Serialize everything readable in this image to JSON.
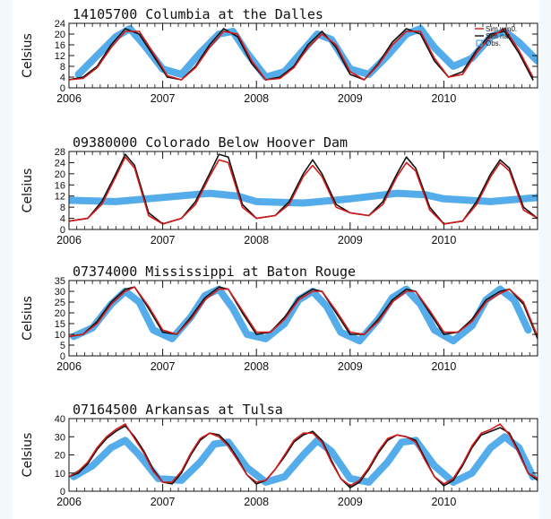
{
  "chart_data": [
    {
      "type": "line",
      "title": "14105700 Columbia at the Dalles",
      "ylabel": "Celsius",
      "xlim": [
        2006,
        2011
      ],
      "x_ticks": [
        "2006",
        "2007",
        "2008",
        "2009",
        "2010"
      ],
      "ylim": [
        0,
        24
      ],
      "y_ticks": [
        0,
        4,
        8,
        12,
        16,
        20,
        24
      ],
      "legend": {
        "placement": "top-right",
        "entries": [
          "Sim wm0.",
          "Sim nat.",
          "Obs."
        ]
      },
      "series": [
        {
          "name": "Obs.",
          "color": "#4ba9e9",
          "style": "thick-marker",
          "x": [
            2006.1,
            2006.3,
            2006.5,
            2006.65,
            2006.8,
            2007.0,
            2007.2,
            2007.4,
            2007.6,
            2007.75,
            2007.9,
            2008.1,
            2008.3,
            2008.5,
            2008.65,
            2008.8,
            2009.0,
            2009.2,
            2009.4,
            2009.6,
            2009.75,
            2009.9,
            2010.1,
            2010.3,
            2010.5,
            2010.65,
            2010.8,
            2011.0
          ],
          "y": [
            5,
            12,
            19,
            22,
            16,
            7,
            5,
            13,
            20,
            21,
            13,
            4,
            6,
            14,
            20,
            18,
            7,
            5,
            12,
            20,
            22,
            15,
            8,
            11,
            19,
            21,
            17,
            10
          ]
        },
        {
          "name": "Sim nat.",
          "color": "#111111",
          "style": "line",
          "x": [
            2006.0,
            2006.15,
            2006.3,
            2006.45,
            2006.6,
            2006.75,
            2006.9,
            2007.05,
            2007.2,
            2007.35,
            2007.5,
            2007.65,
            2007.8,
            2007.95,
            2008.1,
            2008.25,
            2008.4,
            2008.55,
            2008.7,
            2008.85,
            2009.0,
            2009.15,
            2009.3,
            2009.45,
            2009.6,
            2009.75,
            2009.9,
            2010.05,
            2010.2,
            2010.35,
            2010.5,
            2010.65,
            2010.8,
            2010.95
          ],
          "y": [
            3,
            4,
            8,
            16,
            22,
            20,
            12,
            4,
            3,
            8,
            16,
            22,
            19,
            9,
            3,
            4,
            8,
            16,
            21,
            15,
            5,
            3,
            9,
            17,
            22,
            20,
            10,
            4,
            6,
            14,
            20,
            21,
            13,
            3
          ]
        },
        {
          "name": "Sim wm0.",
          "color": "#d11a1a",
          "style": "line",
          "x": [
            2006.0,
            2006.15,
            2006.3,
            2006.45,
            2006.6,
            2006.75,
            2006.9,
            2007.05,
            2007.2,
            2007.35,
            2007.5,
            2007.65,
            2007.8,
            2007.95,
            2008.1,
            2008.25,
            2008.4,
            2008.55,
            2008.7,
            2008.85,
            2009.0,
            2009.15,
            2009.3,
            2009.45,
            2009.6,
            2009.75,
            2009.9,
            2010.05,
            2010.2,
            2010.35,
            2010.5,
            2010.65,
            2010.8,
            2010.95
          ],
          "y": [
            3,
            3.5,
            7.5,
            15,
            21,
            21,
            13,
            4.5,
            3,
            7.5,
            15,
            21,
            20,
            10,
            3,
            3.5,
            7.5,
            15,
            20,
            16,
            6,
            3,
            8.5,
            16,
            21,
            21,
            11,
            4,
            5,
            13,
            19,
            22,
            14,
            4
          ]
        }
      ]
    },
    {
      "type": "line",
      "title": "09380000 Colorado Below Hoover Dam",
      "ylabel": "Celsius",
      "xlim": [
        2006,
        2011
      ],
      "x_ticks": [
        "2006",
        "2007",
        "2008",
        "2009",
        "2010"
      ],
      "ylim": [
        0,
        28
      ],
      "y_ticks": [
        0,
        4,
        8,
        12,
        16,
        20,
        24,
        28
      ],
      "series": [
        {
          "name": "Obs.",
          "color": "#4ba9e9",
          "style": "thick-marker",
          "x": [
            2006.0,
            2006.5,
            2007.0,
            2007.5,
            2007.8,
            2008.0,
            2008.5,
            2009.0,
            2009.5,
            2009.8,
            2010.0,
            2010.5,
            2011.0
          ],
          "y": [
            10.5,
            10,
            11.5,
            13,
            12,
            10,
            9.5,
            11,
            13,
            12.5,
            11,
            10,
            11.5
          ]
        },
        {
          "name": "Sim nat.",
          "color": "#111111",
          "style": "line",
          "x": [
            2006.0,
            2006.2,
            2006.35,
            2006.5,
            2006.6,
            2006.7,
            2006.85,
            2007.0,
            2007.2,
            2007.35,
            2007.5,
            2007.6,
            2007.7,
            2007.85,
            2008.0,
            2008.2,
            2008.35,
            2008.5,
            2008.6,
            2008.7,
            2008.85,
            2009.0,
            2009.2,
            2009.35,
            2009.5,
            2009.6,
            2009.7,
            2009.85,
            2010.0,
            2010.2,
            2010.35,
            2010.5,
            2010.6,
            2010.7,
            2010.85,
            2011.0
          ],
          "y": [
            3,
            4,
            10,
            20,
            27,
            23,
            6,
            2,
            4,
            10,
            20,
            27,
            26,
            9,
            4,
            5,
            10,
            20,
            25,
            20,
            9,
            6,
            5,
            10,
            20,
            26,
            22,
            8,
            2,
            3,
            10,
            20,
            25,
            22,
            8,
            4
          ]
        },
        {
          "name": "Sim wm0.",
          "color": "#d11a1a",
          "style": "line",
          "x": [
            2006.0,
            2006.2,
            2006.35,
            2006.5,
            2006.6,
            2006.7,
            2006.85,
            2007.0,
            2007.2,
            2007.35,
            2007.5,
            2007.6,
            2007.7,
            2007.85,
            2008.0,
            2008.2,
            2008.35,
            2008.5,
            2008.6,
            2008.7,
            2008.85,
            2009.0,
            2009.2,
            2009.35,
            2009.5,
            2009.6,
            2009.7,
            2009.85,
            2010.0,
            2010.2,
            2010.35,
            2010.5,
            2010.6,
            2010.7,
            2010.85,
            2011.0
          ],
          "y": [
            3,
            4,
            9,
            19,
            26,
            22,
            5,
            2,
            4,
            9,
            19,
            25,
            24,
            8,
            4,
            5,
            9,
            19,
            23,
            19,
            8,
            6,
            5,
            9,
            19,
            24,
            21,
            7,
            2,
            3,
            9,
            19,
            24,
            21,
            7,
            4
          ]
        }
      ]
    },
    {
      "type": "line",
      "title": "07374000 Mississippi at Baton Rouge",
      "ylabel": "Celsius",
      "xlim": [
        2006,
        2011
      ],
      "x_ticks": [
        "2006",
        "2007",
        "2008",
        "2009",
        "2010"
      ],
      "ylim": [
        0,
        35
      ],
      "y_ticks": [
        0,
        5,
        10,
        15,
        20,
        25,
        30,
        35
      ],
      "series": [
        {
          "name": "Obs.",
          "color": "#4ba9e9",
          "style": "thick-marker",
          "x": [
            2006.05,
            2006.25,
            2006.45,
            2006.6,
            2006.75,
            2006.9,
            2007.1,
            2007.3,
            2007.45,
            2007.6,
            2007.75,
            2007.9,
            2008.1,
            2008.3,
            2008.45,
            2008.6,
            2008.75,
            2008.9,
            2009.1,
            2009.3,
            2009.45,
            2009.6,
            2009.75,
            2009.9,
            2010.1,
            2010.3,
            2010.45,
            2010.6,
            2010.75,
            2010.9
          ],
          "y": [
            9,
            13,
            24,
            30,
            25,
            12,
            8,
            18,
            28,
            31,
            22,
            10,
            8,
            15,
            26,
            30,
            23,
            11,
            7,
            17,
            27,
            31,
            24,
            12,
            7,
            14,
            26,
            31,
            26,
            12
          ]
        },
        {
          "name": "Sim nat.",
          "color": "#111111",
          "style": "line",
          "x": [
            2006.0,
            2006.15,
            2006.3,
            2006.45,
            2006.6,
            2006.7,
            2006.85,
            2007.0,
            2007.15,
            2007.3,
            2007.45,
            2007.6,
            2007.7,
            2007.85,
            2008.0,
            2008.15,
            2008.3,
            2008.45,
            2008.6,
            2008.7,
            2008.85,
            2009.0,
            2009.15,
            2009.3,
            2009.45,
            2009.6,
            2009.7,
            2009.85,
            2010.0,
            2010.15,
            2010.3,
            2010.45,
            2010.6,
            2010.7,
            2010.85,
            2011.0
          ],
          "y": [
            9,
            10,
            16,
            25,
            31,
            32,
            22,
            11,
            10,
            18,
            27,
            32,
            31,
            20,
            10,
            11,
            18,
            27,
            31,
            30,
            20,
            10,
            10,
            17,
            26,
            31,
            30,
            20,
            10,
            11,
            17,
            26,
            30,
            31,
            24,
            8
          ]
        },
        {
          "name": "Sim wm0.",
          "color": "#d11a1a",
          "style": "line",
          "x": [
            2006.0,
            2006.15,
            2006.3,
            2006.45,
            2006.6,
            2006.7,
            2006.85,
            2007.0,
            2007.15,
            2007.3,
            2007.45,
            2007.6,
            2007.7,
            2007.85,
            2008.0,
            2008.15,
            2008.3,
            2008.45,
            2008.6,
            2008.7,
            2008.85,
            2009.0,
            2009.15,
            2009.3,
            2009.45,
            2009.6,
            2009.7,
            2009.85,
            2010.0,
            2010.15,
            2010.3,
            2010.45,
            2010.6,
            2010.7,
            2010.85,
            2011.0
          ],
          "y": [
            9,
            10,
            15,
            24,
            30,
            32,
            23,
            12,
            10,
            17,
            26,
            31,
            31,
            21,
            11,
            11,
            17,
            26,
            30,
            30,
            21,
            11,
            10,
            16,
            25,
            30,
            30,
            21,
            11,
            11,
            16,
            25,
            29,
            31,
            25,
            9
          ]
        }
      ]
    },
    {
      "type": "line",
      "title": "07164500 Arkansas at Tulsa",
      "ylabel": "Celsius",
      "xlim": [
        2006,
        2011
      ],
      "x_ticks": [
        "2006",
        "2007",
        "2008",
        "2009",
        "2010"
      ],
      "ylim": [
        0,
        40
      ],
      "y_ticks": [
        0,
        10,
        20,
        30,
        40
      ],
      "series": [
        {
          "name": "Obs.",
          "color": "#4ba9e9",
          "style": "thick-marker",
          "x": [
            2006.05,
            2006.25,
            2006.45,
            2006.6,
            2006.75,
            2006.95,
            2007.2,
            2007.4,
            2007.55,
            2007.7,
            2007.9,
            2008.1,
            2008.3,
            2008.5,
            2008.65,
            2008.8,
            2009.0,
            2009.2,
            2009.4,
            2009.55,
            2009.7,
            2009.9,
            2010.1,
            2010.3,
            2010.5,
            2010.65,
            2010.8,
            2010.95
          ],
          "y": [
            8,
            14,
            24,
            28,
            20,
            7,
            6,
            16,
            26,
            27,
            13,
            5,
            8,
            20,
            28,
            22,
            7,
            5,
            16,
            27,
            28,
            14,
            5,
            10,
            24,
            30,
            24,
            8
          ]
        },
        {
          "name": "Sim nat.",
          "color": "#111111",
          "style": "line",
          "x": [
            2006.0,
            2006.1,
            2006.2,
            2006.3,
            2006.4,
            2006.5,
            2006.6,
            2006.7,
            2006.8,
            2006.9,
            2007.0,
            2007.1,
            2007.2,
            2007.3,
            2007.4,
            2007.5,
            2007.6,
            2007.7,
            2007.8,
            2007.9,
            2008.0,
            2008.1,
            2008.2,
            2008.3,
            2008.4,
            2008.5,
            2008.6,
            2008.7,
            2008.8,
            2008.9,
            2009.0,
            2009.1,
            2009.2,
            2009.3,
            2009.4,
            2009.5,
            2009.6,
            2009.7,
            2009.8,
            2009.9,
            2010.0,
            2010.1,
            2010.2,
            2010.3,
            2010.4,
            2010.5,
            2010.6,
            2010.7,
            2010.8,
            2010.9,
            2011.0
          ],
          "y": [
            8,
            10,
            15,
            23,
            29,
            33,
            36,
            30,
            22,
            12,
            5,
            4,
            10,
            20,
            28,
            32,
            31,
            26,
            18,
            9,
            4,
            6,
            12,
            19,
            27,
            31,
            33,
            28,
            17,
            7,
            2,
            5,
            12,
            21,
            28,
            31,
            30,
            28,
            18,
            8,
            3,
            6,
            14,
            24,
            31,
            33,
            35,
            32,
            22,
            10,
            6
          ]
        },
        {
          "name": "Sim wm0.",
          "color": "#d11a1a",
          "style": "line",
          "x": [
            2006.0,
            2006.1,
            2006.2,
            2006.3,
            2006.4,
            2006.5,
            2006.6,
            2006.7,
            2006.8,
            2006.9,
            2007.0,
            2007.1,
            2007.2,
            2007.3,
            2007.4,
            2007.5,
            2007.6,
            2007.7,
            2007.8,
            2007.9,
            2008.0,
            2008.1,
            2008.2,
            2008.3,
            2008.4,
            2008.5,
            2008.6,
            2008.7,
            2008.8,
            2008.9,
            2009.0,
            2009.1,
            2009.2,
            2009.3,
            2009.4,
            2009.5,
            2009.6,
            2009.7,
            2009.8,
            2009.9,
            2010.0,
            2010.1,
            2010.2,
            2010.3,
            2010.4,
            2010.5,
            2010.6,
            2010.7,
            2010.8,
            2010.9,
            2011.0
          ],
          "y": [
            8,
            11,
            16,
            24,
            30,
            34,
            37,
            29,
            21,
            11,
            5,
            5,
            11,
            21,
            29,
            32,
            30,
            25,
            17,
            9,
            5,
            6,
            12,
            20,
            28,
            32,
            32,
            27,
            16,
            7,
            3,
            6,
            13,
            22,
            29,
            31,
            30,
            27,
            17,
            8,
            4,
            7,
            15,
            25,
            32,
            34,
            37,
            31,
            21,
            10,
            7
          ]
        }
      ]
    }
  ]
}
